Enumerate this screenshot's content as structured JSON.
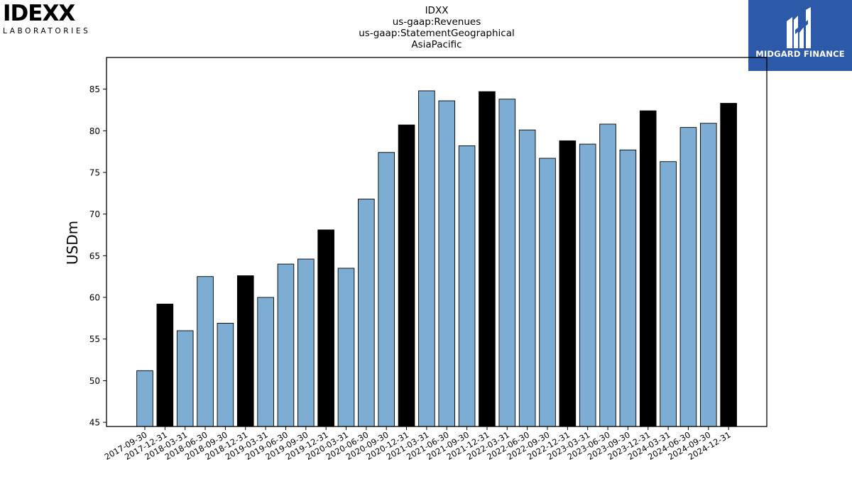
{
  "logos": {
    "left_big": "IDEXX",
    "left_small": "LABORATORIES",
    "right_brand": "MIDGARD FINANCE"
  },
  "colors": {
    "bar_default": "#7eadd4",
    "bar_highlight": "#000000",
    "brand_blue": "#2d5aa8"
  },
  "chart_data": {
    "type": "bar",
    "title_lines": [
      "IDXX",
      "us-gaap:Revenues",
      "us-gaap:StatementGeographical",
      "AsiaPacific"
    ],
    "xlabel": "",
    "ylabel": "USDm",
    "ylim": [
      44.5,
      88.8
    ],
    "yticks": [
      45,
      50,
      55,
      60,
      65,
      70,
      75,
      80,
      85
    ],
    "grid": false,
    "categories": [
      "2017-09-30",
      "2017-12-31",
      "2018-03-31",
      "2018-06-30",
      "2018-09-30",
      "2018-12-31",
      "2019-03-31",
      "2019-06-30",
      "2019-09-30",
      "2019-12-31",
      "2020-03-31",
      "2020-06-30",
      "2020-09-30",
      "2020-12-31",
      "2021-03-31",
      "2021-06-30",
      "2021-09-30",
      "2021-12-31",
      "2022-03-31",
      "2022-06-30",
      "2022-09-30",
      "2022-12-31",
      "2023-03-31",
      "2023-06-30",
      "2023-09-30",
      "2023-12-31",
      "2024-03-31",
      "2024-06-30",
      "2024-09-30",
      "2024-12-31"
    ],
    "values": [
      51.2,
      59.2,
      56.0,
      62.5,
      56.9,
      62.6,
      60.0,
      64.0,
      64.6,
      68.1,
      63.5,
      71.8,
      77.4,
      80.7,
      84.8,
      83.6,
      78.2,
      84.7,
      83.8,
      80.1,
      76.7,
      78.8,
      78.4,
      80.8,
      77.7,
      82.4,
      76.3,
      80.4,
      80.9,
      83.3
    ],
    "highlight": [
      false,
      true,
      false,
      false,
      false,
      true,
      false,
      false,
      false,
      true,
      false,
      false,
      false,
      true,
      false,
      false,
      false,
      true,
      false,
      false,
      false,
      true,
      false,
      false,
      false,
      true,
      false,
      false,
      false,
      true
    ]
  }
}
